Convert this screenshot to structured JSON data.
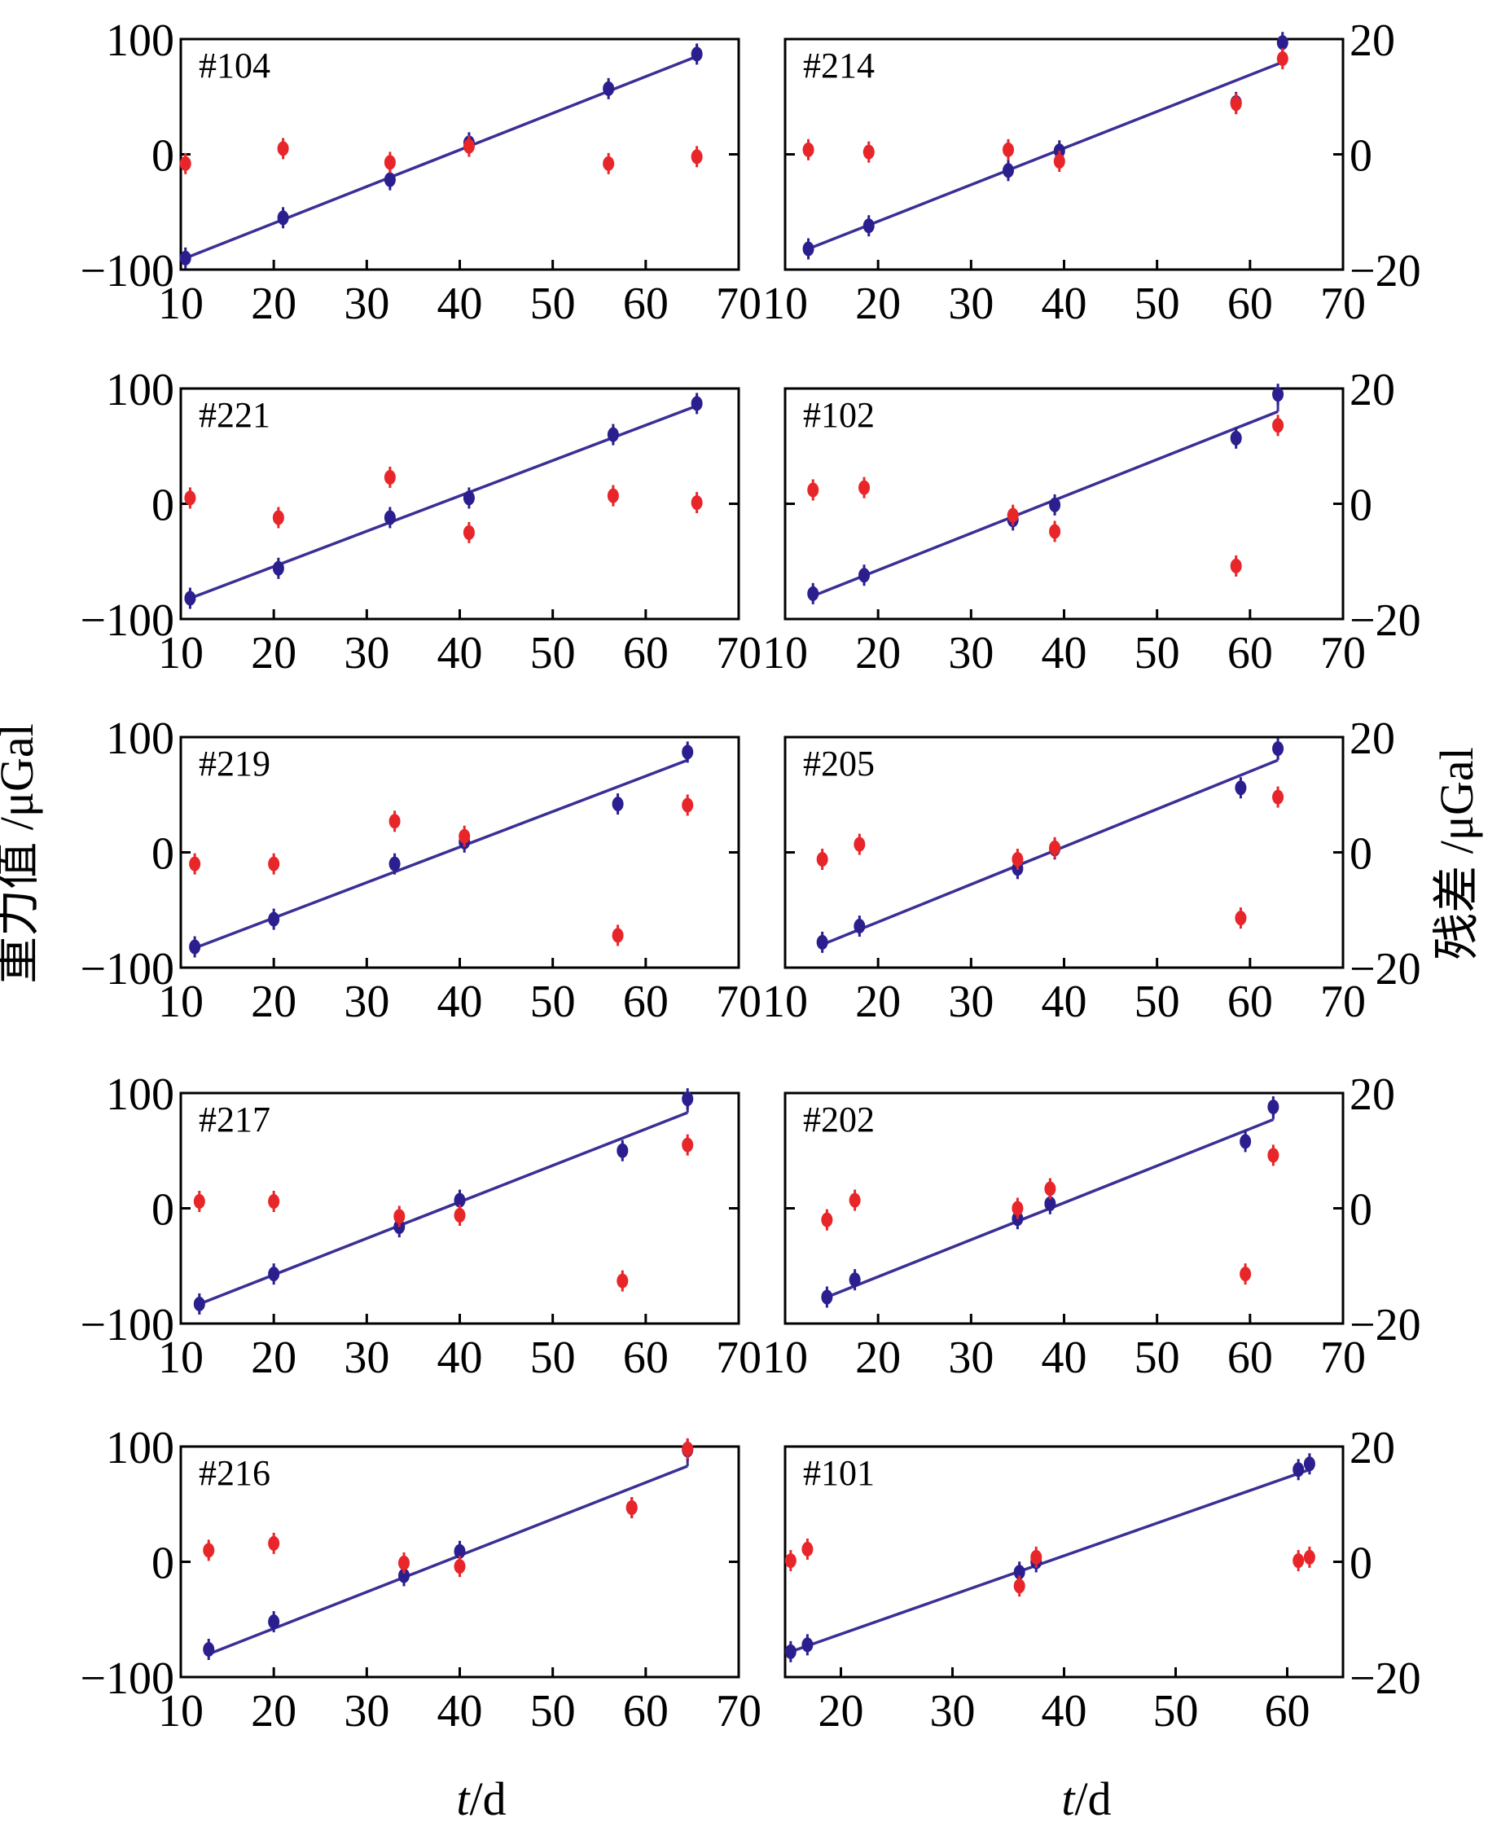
{
  "figure": {
    "left_axis_label": "重力值 /μGal",
    "right_axis_label": "残差 /μGal",
    "xlabel_italic": "t",
    "xlabel_unit": "/d"
  },
  "colors": {
    "gravity": "#2b1f8f",
    "residual": "#e8262a",
    "fit_line": "#3a2f95",
    "axis": "#000000"
  },
  "chart_data": [
    {
      "type": "scatter",
      "title": "#104",
      "xlim": [
        10,
        70
      ],
      "ylim": [
        -100,
        100
      ],
      "y2lim": [
        -20,
        20
      ],
      "xticks": [
        10,
        20,
        30,
        40,
        50,
        60,
        70
      ],
      "yticks": [
        -100,
        0,
        100
      ],
      "y2ticks": [
        -20,
        0,
        20
      ],
      "series": [
        {
          "kind": "gravity",
          "x": [
            10.5,
            21.0,
            32.5,
            41.0,
            56.0,
            65.5
          ],
          "y": [
            -90,
            -55,
            -22,
            10,
            57,
            87
          ]
        },
        {
          "kind": "residual",
          "x": [
            10.5,
            21.0,
            32.5,
            41.0,
            56.0,
            65.5
          ],
          "y": [
            -1.6,
            1.0,
            -1.4,
            1.4,
            -1.6,
            -0.4
          ]
        }
      ],
      "fit": {
        "x": [
          10.5,
          65.5
        ],
        "y": [
          -90,
          85
        ]
      }
    },
    {
      "type": "scatter",
      "title": "#214",
      "xlim": [
        10,
        70
      ],
      "ylim": [
        -100,
        100
      ],
      "y2lim": [
        -20,
        20
      ],
      "xticks": [
        10,
        20,
        30,
        40,
        50,
        60,
        70
      ],
      "yticks": [
        -100,
        0,
        100
      ],
      "y2ticks": [
        -20,
        0,
        20
      ],
      "series": [
        {
          "kind": "gravity",
          "x": [
            12.5,
            19.0,
            34.0,
            39.5,
            58.5,
            63.5
          ],
          "y": [
            -82,
            -62,
            -14,
            3,
            45,
            97
          ]
        },
        {
          "kind": "residual",
          "x": [
            12.5,
            19.0,
            34.0,
            39.5,
            58.5,
            63.5
          ],
          "y": [
            0.8,
            0.4,
            0.8,
            -1.2,
            8.8,
            16.6
          ]
        }
      ],
      "fit": {
        "x": [
          12.5,
          63.5
        ],
        "y": [
          -82,
          80
        ]
      }
    },
    {
      "type": "scatter",
      "title": "#221",
      "xlim": [
        10,
        70
      ],
      "ylim": [
        -100,
        100
      ],
      "y2lim": [
        -20,
        20
      ],
      "xticks": [
        10,
        20,
        30,
        40,
        50,
        60,
        70
      ],
      "yticks": [
        -100,
        0,
        100
      ],
      "y2ticks": [
        -20,
        0,
        20
      ],
      "series": [
        {
          "kind": "gravity",
          "x": [
            11.0,
            20.5,
            32.5,
            41.0,
            56.5,
            65.5
          ],
          "y": [
            -82,
            -56,
            -12,
            5,
            60,
            87
          ]
        },
        {
          "kind": "residual",
          "x": [
            11.0,
            20.5,
            32.5,
            41.0,
            56.5,
            65.5
          ],
          "y": [
            1.0,
            -2.4,
            4.6,
            -5.0,
            1.4,
            0.2
          ]
        }
      ],
      "fit": {
        "x": [
          11.0,
          65.5
        ],
        "y": [
          -82,
          85
        ]
      }
    },
    {
      "type": "scatter",
      "title": "#102",
      "xlim": [
        10,
        70
      ],
      "ylim": [
        -100,
        100
      ],
      "y2lim": [
        -20,
        20
      ],
      "xticks": [
        10,
        20,
        30,
        40,
        50,
        60,
        70
      ],
      "yticks": [
        -100,
        0,
        100
      ],
      "y2ticks": [
        -20,
        0,
        20
      ],
      "series": [
        {
          "kind": "gravity",
          "x": [
            13.0,
            18.5,
            34.5,
            39.0,
            58.5,
            63.0
          ],
          "y": [
            -78,
            -62,
            -14,
            -1,
            57,
            95
          ]
        },
        {
          "kind": "residual",
          "x": [
            13.0,
            18.5,
            34.5,
            39.0,
            58.5,
            63.0
          ],
          "y": [
            2.4,
            2.8,
            -2.0,
            -4.8,
            -10.8,
            13.6
          ]
        }
      ],
      "fit": {
        "x": [
          13.0,
          63.0
        ],
        "y": [
          -80,
          80
        ]
      }
    },
    {
      "type": "scatter",
      "title": "#219",
      "xlim": [
        10,
        70
      ],
      "ylim": [
        -100,
        100
      ],
      "y2lim": [
        -20,
        20
      ],
      "xticks": [
        10,
        20,
        30,
        40,
        50,
        60,
        70
      ],
      "yticks": [
        -100,
        0,
        100
      ],
      "y2ticks": [
        -20,
        0,
        20
      ],
      "series": [
        {
          "kind": "gravity",
          "x": [
            11.5,
            20.0,
            33.0,
            40.5,
            57.0,
            64.5
          ],
          "y": [
            -82,
            -58,
            -10,
            9,
            42,
            87
          ]
        },
        {
          "kind": "residual",
          "x": [
            11.5,
            20.0,
            33.0,
            40.5,
            57.0,
            64.5
          ],
          "y": [
            -2.0,
            -2.0,
            5.4,
            2.8,
            -14.4,
            8.2
          ]
        }
      ],
      "fit": {
        "x": [
          11.5,
          64.5
        ],
        "y": [
          -83,
          80
        ]
      }
    },
    {
      "type": "scatter",
      "title": "#205",
      "xlim": [
        10,
        70
      ],
      "ylim": [
        -100,
        100
      ],
      "y2lim": [
        -20,
        20
      ],
      "xticks": [
        10,
        20,
        30,
        40,
        50,
        60,
        70
      ],
      "yticks": [
        -100,
        0,
        100
      ],
      "y2ticks": [
        -20,
        0,
        20
      ],
      "series": [
        {
          "kind": "gravity",
          "x": [
            14.0,
            18.0,
            35.0,
            39.0,
            59.0,
            63.0
          ],
          "y": [
            -78,
            -64,
            -14,
            3,
            56,
            90
          ]
        },
        {
          "kind": "residual",
          "x": [
            14.0,
            18.0,
            35.0,
            39.0,
            59.0,
            63.0
          ],
          "y": [
            -1.2,
            1.4,
            -1.2,
            0.8,
            -11.4,
            9.6
          ]
        }
      ],
      "fit": {
        "x": [
          14.0,
          63.0
        ],
        "y": [
          -80,
          80
        ]
      }
    },
    {
      "type": "scatter",
      "title": "#217",
      "xlim": [
        10,
        70
      ],
      "ylim": [
        -100,
        100
      ],
      "y2lim": [
        -20,
        20
      ],
      "xticks": [
        10,
        20,
        30,
        40,
        50,
        60,
        70
      ],
      "yticks": [
        -100,
        0,
        100
      ],
      "y2ticks": [
        -20,
        0,
        20
      ],
      "series": [
        {
          "kind": "gravity",
          "x": [
            12.0,
            20.0,
            33.5,
            40.0,
            57.5,
            64.5
          ],
          "y": [
            -83,
            -57,
            -16,
            7,
            50,
            95
          ]
        },
        {
          "kind": "residual",
          "x": [
            12.0,
            20.0,
            33.5,
            40.0,
            57.5,
            64.5
          ],
          "y": [
            1.2,
            1.2,
            -1.4,
            -1.2,
            -12.6,
            11.0
          ]
        }
      ],
      "fit": {
        "x": [
          12.0,
          64.5
        ],
        "y": [
          -83,
          83
        ]
      }
    },
    {
      "type": "scatter",
      "title": "#202",
      "xlim": [
        10,
        70
      ],
      "ylim": [
        -100,
        100
      ],
      "y2lim": [
        -20,
        20
      ],
      "xticks": [
        10,
        20,
        30,
        40,
        50,
        60,
        70
      ],
      "yticks": [
        -100,
        0,
        100
      ],
      "y2ticks": [
        -20,
        0,
        20
      ],
      "series": [
        {
          "kind": "gravity",
          "x": [
            14.5,
            17.5,
            35.0,
            38.5,
            59.5,
            62.5
          ],
          "y": [
            -77,
            -62,
            -9,
            4,
            58,
            88
          ]
        },
        {
          "kind": "residual",
          "x": [
            14.5,
            17.5,
            35.0,
            38.5,
            59.5,
            62.5
          ],
          "y": [
            -2.0,
            1.4,
            0.0,
            3.4,
            -11.4,
            9.2
          ]
        }
      ],
      "fit": {
        "x": [
          14.5,
          62.5
        ],
        "y": [
          -77,
          77
        ]
      }
    },
    {
      "type": "scatter",
      "title": "#216",
      "xlim": [
        10,
        70
      ],
      "ylim": [
        -100,
        100
      ],
      "y2lim": [
        -20,
        20
      ],
      "xticks": [
        10,
        20,
        30,
        40,
        50,
        60,
        70
      ],
      "yticks": [
        -100,
        0,
        100
      ],
      "y2ticks": [
        -20,
        0,
        20
      ],
      "series": [
        {
          "kind": "gravity",
          "x": [
            13.0,
            20.0,
            34.0,
            40.0,
            58.5,
            64.5
          ],
          "y": [
            -76,
            -52,
            -12,
            9,
            47,
            97
          ]
        },
        {
          "kind": "residual",
          "x": [
            13.0,
            20.0,
            34.0,
            40.0,
            58.5,
            64.5
          ],
          "y": [
            2.0,
            3.2,
            -0.2,
            -0.8,
            9.4,
            19.6
          ]
        }
      ],
      "fit": {
        "x": [
          13.0,
          64.5
        ],
        "y": [
          -80,
          83
        ]
      }
    },
    {
      "type": "scatter",
      "title": "#101",
      "xlim": [
        15,
        65
      ],
      "ylim": [
        -100,
        100
      ],
      "y2lim": [
        -20,
        20
      ],
      "xticks": [
        20,
        30,
        40,
        50,
        60
      ],
      "yticks": [
        -100,
        0,
        100
      ],
      "y2ticks": [
        -20,
        0,
        20
      ],
      "series": [
        {
          "kind": "gravity",
          "x": [
            15.5,
            17.0,
            36.0,
            37.5,
            61.0,
            62.0
          ],
          "y": [
            -78,
            -72,
            -9,
            0,
            80,
            85
          ]
        },
        {
          "kind": "residual",
          "x": [
            15.5,
            17.0,
            36.0,
            37.5,
            61.0,
            62.0
          ],
          "y": [
            0.2,
            2.2,
            -4.2,
            0.8,
            0.2,
            0.8
          ]
        }
      ],
      "fit": {
        "x": [
          15.5,
          62.0
        ],
        "y": [
          -78,
          80
        ]
      }
    }
  ]
}
